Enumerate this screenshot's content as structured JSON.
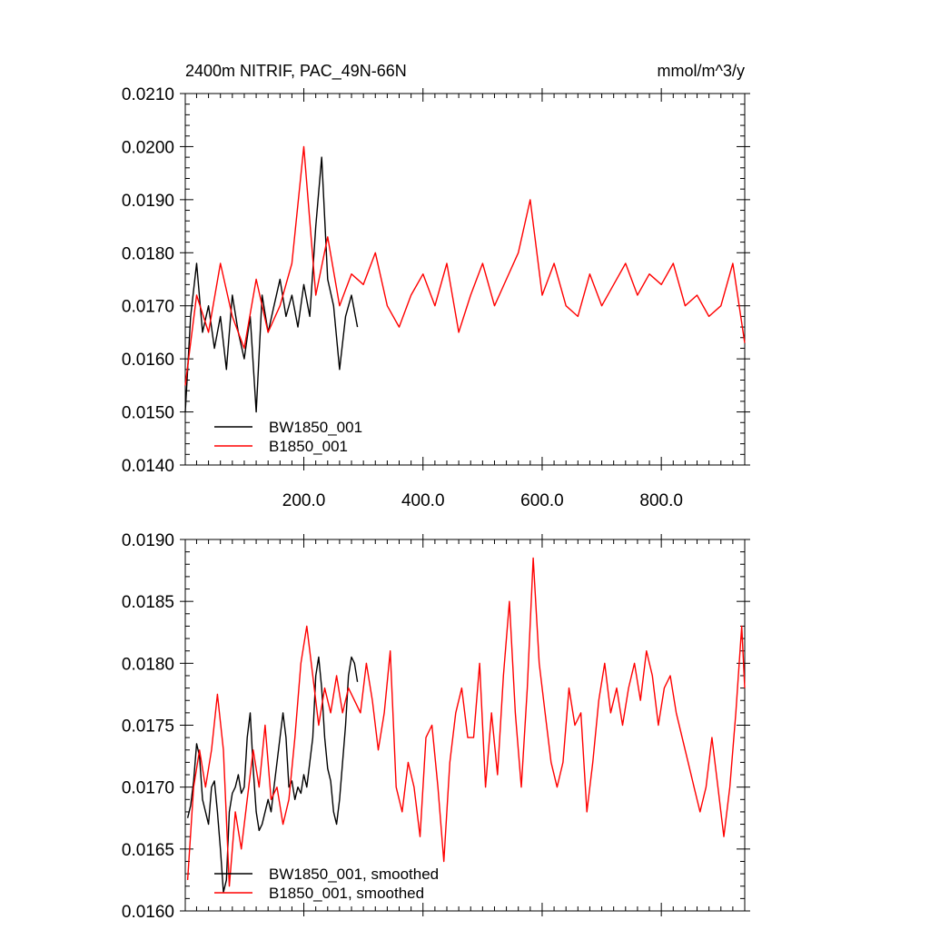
{
  "chart_data": [
    {
      "type": "line",
      "title": "2400m NITRIF, PAC_49N-66N",
      "units": "mmol/m^3/y",
      "xlim": [
        1,
        940
      ],
      "ylim": [
        0.014,
        0.021
      ],
      "x_ticks": [
        200,
        400,
        600,
        800
      ],
      "x_tick_labels": [
        "200.0",
        "400.0",
        "600.0",
        "800.0"
      ],
      "y_ticks": [
        0.014,
        0.015,
        0.016,
        0.017,
        0.018,
        0.019,
        0.02,
        0.021
      ],
      "y_tick_labels": [
        "0.0140",
        "0.0150",
        "0.0160",
        "0.0170",
        "0.0180",
        "0.0190",
        "0.0200",
        "0.0210"
      ],
      "legend_placement": "bottom-left",
      "series": [
        {
          "name": "BW1850_001",
          "color": "#000000",
          "x": [
            1,
            10,
            20,
            30,
            40,
            50,
            60,
            70,
            80,
            90,
            100,
            110,
            120,
            130,
            140,
            150,
            160,
            170,
            180,
            190,
            200,
            210,
            220,
            230,
            240,
            250,
            260,
            270,
            280,
            290
          ],
          "y": [
            0.015,
            0.0168,
            0.0178,
            0.0165,
            0.017,
            0.0162,
            0.0168,
            0.0158,
            0.0172,
            0.0165,
            0.016,
            0.0168,
            0.015,
            0.0172,
            0.0165,
            0.017,
            0.0175,
            0.0168,
            0.0172,
            0.0166,
            0.0174,
            0.0168,
            0.0185,
            0.0198,
            0.0175,
            0.017,
            0.0158,
            0.0168,
            0.0172,
            0.0166
          ]
        },
        {
          "name": "B1850_001",
          "color": "#ff0000",
          "x": [
            1,
            20,
            40,
            60,
            80,
            100,
            120,
            140,
            160,
            180,
            200,
            220,
            240,
            260,
            280,
            300,
            320,
            340,
            360,
            380,
            400,
            420,
            440,
            460,
            480,
            500,
            520,
            540,
            560,
            580,
            600,
            620,
            640,
            660,
            680,
            700,
            720,
            740,
            760,
            780,
            800,
            820,
            840,
            860,
            880,
            900,
            920,
            940
          ],
          "y": [
            0.0155,
            0.0172,
            0.0165,
            0.0178,
            0.0168,
            0.0162,
            0.0175,
            0.0165,
            0.017,
            0.0178,
            0.02,
            0.0172,
            0.0183,
            0.017,
            0.0176,
            0.0174,
            0.018,
            0.017,
            0.0166,
            0.0172,
            0.0176,
            0.017,
            0.0178,
            0.0165,
            0.0172,
            0.0178,
            0.017,
            0.0175,
            0.018,
            0.019,
            0.0172,
            0.0178,
            0.017,
            0.0168,
            0.0176,
            0.017,
            0.0174,
            0.0178,
            0.0172,
            0.0176,
            0.0174,
            0.0178,
            0.017,
            0.0172,
            0.0168,
            0.017,
            0.0178,
            0.0163
          ]
        }
      ]
    },
    {
      "type": "line",
      "title": "",
      "xlim": [
        1,
        940
      ],
      "ylim": [
        0.016,
        0.019
      ],
      "x_ticks": [
        200,
        400,
        600,
        800
      ],
      "x_tick_labels": [
        "",
        "",
        "",
        ""
      ],
      "y_ticks": [
        0.016,
        0.0165,
        0.017,
        0.0175,
        0.018,
        0.0185,
        0.019
      ],
      "y_tick_labels": [
        "0.0160",
        "0.0165",
        "0.0170",
        "0.0175",
        "0.0180",
        "0.0185",
        "0.0190"
      ],
      "legend_placement": "bottom-left",
      "series": [
        {
          "name": "BW1850_001, smoothed",
          "color": "#000000",
          "x": [
            5,
            10,
            15,
            20,
            25,
            30,
            35,
            40,
            45,
            50,
            55,
            60,
            65,
            70,
            75,
            80,
            85,
            90,
            95,
            100,
            105,
            110,
            115,
            120,
            125,
            130,
            135,
            140,
            145,
            150,
            155,
            160,
            165,
            170,
            175,
            180,
            185,
            190,
            195,
            200,
            205,
            210,
            215,
            220,
            225,
            230,
            235,
            240,
            245,
            250,
            255,
            260,
            265,
            270,
            275,
            280,
            285,
            290
          ],
          "y": [
            0.01675,
            0.01685,
            0.01705,
            0.01735,
            0.01725,
            0.0169,
            0.0168,
            0.0167,
            0.017,
            0.01705,
            0.0168,
            0.0165,
            0.01615,
            0.01625,
            0.0168,
            0.01695,
            0.017,
            0.0171,
            0.01695,
            0.017,
            0.0174,
            0.0176,
            0.01715,
            0.0168,
            0.01665,
            0.0167,
            0.0168,
            0.0169,
            0.0168,
            0.017,
            0.0172,
            0.0174,
            0.0176,
            0.0174,
            0.017,
            0.01705,
            0.0169,
            0.017,
            0.01695,
            0.0171,
            0.017,
            0.0172,
            0.0174,
            0.0179,
            0.01805,
            0.0178,
            0.0174,
            0.01715,
            0.01705,
            0.0168,
            0.0167,
            0.0169,
            0.0172,
            0.0175,
            0.0179,
            0.01805,
            0.018,
            0.01785
          ]
        },
        {
          "name": "B1850_001, smoothed",
          "color": "#ff0000",
          "x": [
            5,
            15,
            25,
            35,
            45,
            55,
            65,
            75,
            85,
            95,
            105,
            115,
            125,
            135,
            145,
            155,
            165,
            175,
            185,
            195,
            205,
            215,
            225,
            235,
            245,
            255,
            265,
            275,
            285,
            295,
            305,
            315,
            325,
            335,
            345,
            355,
            365,
            375,
            385,
            395,
            405,
            415,
            425,
            435,
            445,
            455,
            465,
            475,
            485,
            495,
            505,
            515,
            525,
            535,
            545,
            555,
            565,
            575,
            585,
            595,
            605,
            615,
            625,
            635,
            645,
            655,
            665,
            675,
            685,
            695,
            705,
            715,
            725,
            735,
            745,
            755,
            765,
            775,
            785,
            795,
            805,
            815,
            825,
            835,
            845,
            855,
            865,
            875,
            885,
            895,
            905,
            915,
            925,
            935,
            940
          ],
          "y": [
            0.01625,
            0.017,
            0.0173,
            0.017,
            0.0173,
            0.01775,
            0.0173,
            0.0162,
            0.0168,
            0.0165,
            0.0169,
            0.0173,
            0.017,
            0.0175,
            0.0169,
            0.017,
            0.0167,
            0.0169,
            0.0174,
            0.018,
            0.0183,
            0.0179,
            0.0175,
            0.0178,
            0.0176,
            0.0179,
            0.0176,
            0.0178,
            0.0177,
            0.0176,
            0.018,
            0.0177,
            0.0173,
            0.0176,
            0.0181,
            0.017,
            0.0168,
            0.0172,
            0.017,
            0.0166,
            0.0174,
            0.0175,
            0.017,
            0.0164,
            0.0172,
            0.0176,
            0.0178,
            0.0174,
            0.0174,
            0.018,
            0.017,
            0.0176,
            0.0171,
            0.0179,
            0.0185,
            0.0176,
            0.017,
            0.0178,
            0.01885,
            0.018,
            0.0176,
            0.0172,
            0.017,
            0.0172,
            0.0178,
            0.0175,
            0.0176,
            0.0168,
            0.0172,
            0.0177,
            0.018,
            0.0176,
            0.0178,
            0.0175,
            0.0178,
            0.018,
            0.0177,
            0.0181,
            0.0179,
            0.0175,
            0.0178,
            0.0179,
            0.0176,
            0.0174,
            0.0172,
            0.017,
            0.0168,
            0.017,
            0.0174,
            0.017,
            0.0166,
            0.017,
            0.0176,
            0.0183,
            0.0178
          ]
        }
      ]
    }
  ]
}
